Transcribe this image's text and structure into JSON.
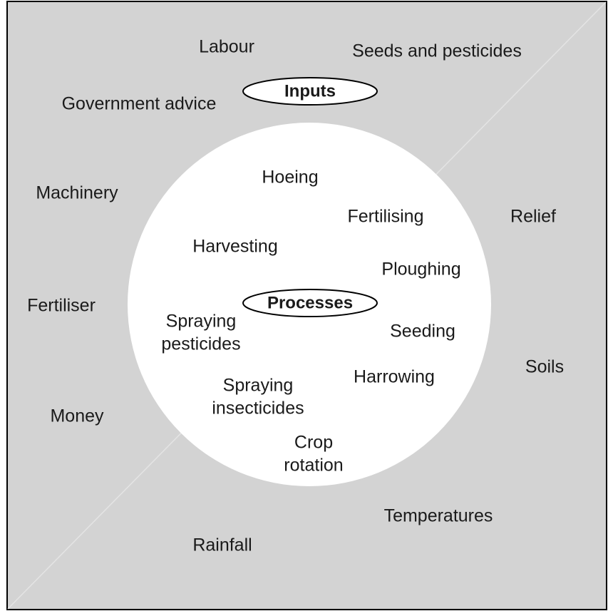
{
  "inputs_label": "Inputs",
  "processes_label": "Processes",
  "inputs": [
    "Labour",
    "Seeds and pesticides",
    "Government advice",
    "Machinery",
    "Relief",
    "Fertiliser",
    "Soils",
    "Money",
    "Temperatures",
    "Rainfall"
  ],
  "processes": [
    "Hoeing",
    "Fertilising",
    "Harvesting",
    "Ploughing",
    [
      "Spraying",
      "pesticides"
    ],
    "Seeding",
    "Harrowing",
    [
      "Spraying",
      "insecticides"
    ],
    [
      "Crop",
      "rotation"
    ]
  ]
}
